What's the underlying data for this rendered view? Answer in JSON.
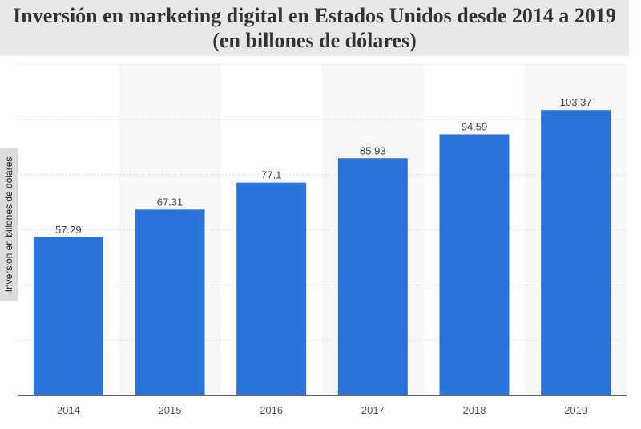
{
  "chart_data": {
    "type": "bar",
    "title": "Inversión en marketing digital en Estados Unidos desde 2014 a 2019 (en billones de dólares)",
    "ylabel": "Inversión en billones de dólares",
    "categories": [
      "2014",
      "2015",
      "2016",
      "2017",
      "2018",
      "2019"
    ],
    "values": [
      57.29,
      67.31,
      77.1,
      85.93,
      94.59,
      103.37
    ],
    "value_labels": [
      "57.29",
      "67.31",
      "77.1",
      "85.93",
      "94.59",
      "103.37"
    ],
    "ylim": [
      0,
      120
    ],
    "grid": true,
    "bar_color": "#2a74d9",
    "band_color": "#f7f7f7"
  }
}
